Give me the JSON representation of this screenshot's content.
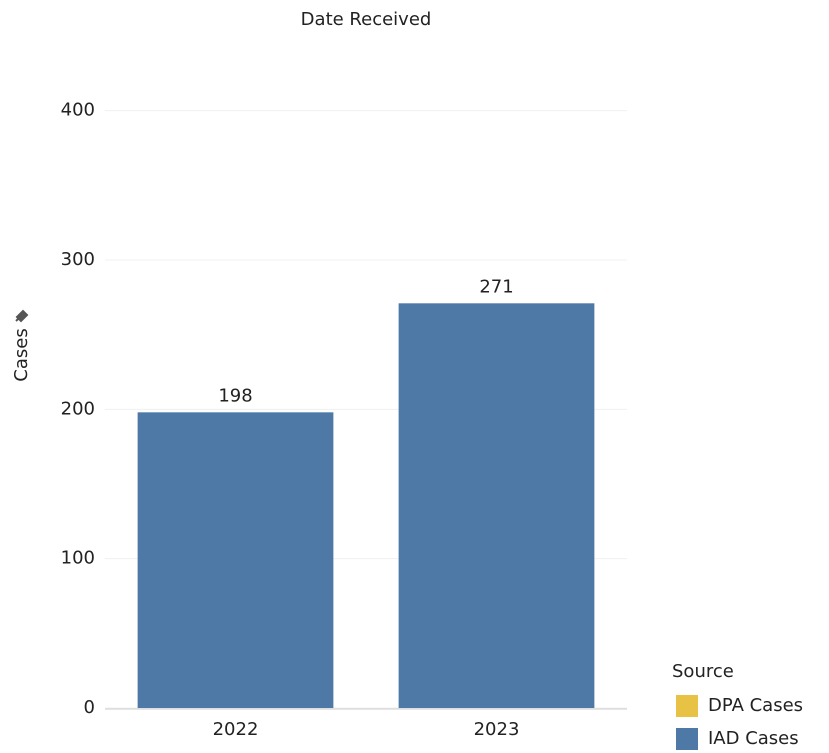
{
  "chart_data": {
    "type": "bar",
    "stacked": true,
    "title": "Date Received",
    "y_label": "Cases",
    "categories": [
      "2022",
      "2023"
    ],
    "series": [
      {
        "name": "DPA Cases",
        "color": "#e8c244",
        "values": [
          null,
          null
        ]
      },
      {
        "name": "IAD Cases",
        "color": "#4e79a7",
        "values": [
          198,
          271
        ]
      }
    ],
    "ylim": [
      0,
      450
    ],
    "yticks": [
      0,
      100,
      200,
      300,
      400
    ],
    "grid": true,
    "legend_title": "Source",
    "legend_position": "bottom-right",
    "data_labels": true
  }
}
